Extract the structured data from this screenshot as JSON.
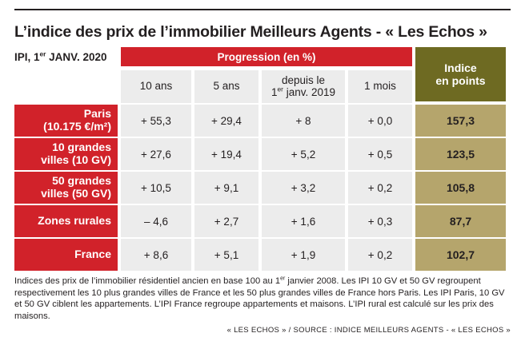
{
  "title": "L’indice des prix de l’immobilier Meilleurs Agents - « Les Echos »",
  "ipi_label": {
    "before": "IPI, 1",
    "sup": "er",
    "after": " JANV. 2020"
  },
  "progression_header": "Progression (en %)",
  "indice_header": "Indice\nen points",
  "columns": [
    "10 ans",
    "5 ans",
    "depuis le 1er janv. 2019",
    "1 mois"
  ],
  "column3_parts": {
    "line1": "depuis le",
    "line2_before": "1",
    "line2_sup": "er",
    "line2_after": " janv. 2019"
  },
  "rows": [
    {
      "label": "Paris\n(10.175 €/m²)",
      "values": [
        "+ 55,3",
        "+ 29,4",
        "+ 8",
        "+ 0,0"
      ],
      "indice": "157,3"
    },
    {
      "label": "10 grandes\nvilles (10 GV)",
      "values": [
        "+ 27,6",
        "+ 19,4",
        "+ 5,2",
        "+ 0,5"
      ],
      "indice": "123,5"
    },
    {
      "label": "50 grandes\nvilles (50 GV)",
      "values": [
        "+ 10,5",
        "+ 9,1",
        "+ 3,2",
        "+ 0,2"
      ],
      "indice": "105,8"
    },
    {
      "label": "Zones rurales",
      "values": [
        "– 4,6",
        "+ 2,7",
        "+ 1,6",
        "+ 0,3"
      ],
      "indice": "87,7"
    },
    {
      "label": "France",
      "values": [
        "+ 8,6",
        "+ 5,1",
        "+ 1,9",
        "+ 0,2"
      ],
      "indice": "102,7"
    }
  ],
  "footnote": {
    "part1": "Indices des prix de l’immobilier résidentiel ancien en base 100 au 1",
    "sup": "er",
    "part2": " janvier 2008. Les IPI 10 GV et 50 GV regroupent respectivement les 10 plus grandes villes de France et les 50 plus grandes villes de France hors Paris. Les IPI Paris, 10 GV et 50 GV ciblent les appartements. L’IPI France regroupe appartements et maisons. L’IPI rural est calculé sur les prix des maisons."
  },
  "source": "« LES ECHOS » / SOURCE : INDICE MEILLEURS AGENTS - « LES ECHOS »",
  "colors": {
    "red": "#d1222a",
    "olive_dark": "#6e6a22",
    "olive_light": "#b5a56c",
    "cell_grey": "#ececec",
    "text": "#231f20"
  }
}
